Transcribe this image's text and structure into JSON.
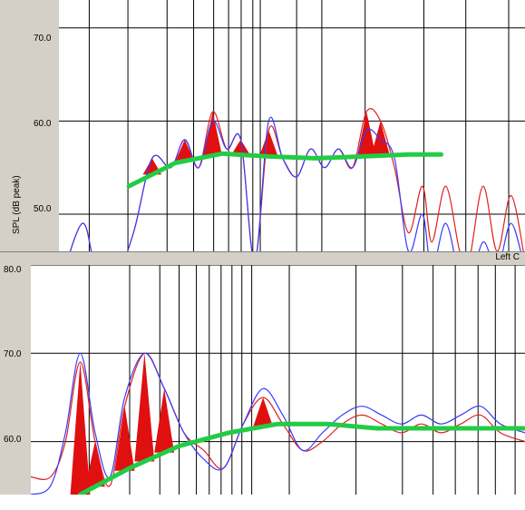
{
  "top_panel": {
    "y_axis_title": "SPL (dB peak)",
    "y_ticks": [
      "70.0",
      "60.0",
      "50.0"
    ]
  },
  "bottom_panel": {
    "header_label": "Left C",
    "y_ticks": [
      "80.0",
      "70.0",
      "60.0"
    ]
  },
  "colors": {
    "background": "#ffffff",
    "gutter": "#d4d0c8",
    "grid": "#000000",
    "measured": "#e02020",
    "target": "#3a3aff",
    "limit": "#22cc44",
    "exceed_fill": "#e01010"
  },
  "chart_data": [
    {
      "type": "line",
      "title": "",
      "ylabel": "SPL (dB peak)",
      "ylim": [
        46,
        73
      ],
      "y_ticks": [
        70,
        60,
        50
      ],
      "grid": true,
      "series": [
        {
          "name": "",
          "color": "red",
          "x": [
            0.0,
            0.05,
            0.08,
            0.12,
            0.16,
            0.2,
            0.24,
            0.27,
            0.3,
            0.33,
            0.36,
            0.39,
            0.42,
            0.45,
            0.48,
            0.51,
            0.54,
            0.57,
            0.6,
            0.63,
            0.66,
            0.69,
            0.72,
            0.75,
            0.78,
            0.8,
            0.83,
            0.86,
            0.88,
            0.91,
            0.94,
            0.97,
            1.0
          ],
          "y": [
            42,
            49,
            44,
            43,
            48,
            56,
            55,
            58,
            55,
            61,
            57,
            58,
            45,
            59,
            56,
            54,
            57,
            55,
            57,
            55,
            61,
            60,
            55,
            48,
            53,
            47,
            53,
            46,
            45,
            53,
            46,
            52,
            45
          ]
        },
        {
          "name": "",
          "color": "blue",
          "x": [
            0.0,
            0.05,
            0.08,
            0.12,
            0.16,
            0.2,
            0.24,
            0.27,
            0.3,
            0.33,
            0.36,
            0.39,
            0.42,
            0.45,
            0.48,
            0.51,
            0.54,
            0.57,
            0.6,
            0.63,
            0.66,
            0.69,
            0.72,
            0.75,
            0.78,
            0.8,
            0.83,
            0.86,
            0.88,
            0.91,
            0.94,
            0.97,
            1.0
          ],
          "y": [
            42,
            49,
            44,
            43,
            48,
            56,
            55,
            58,
            55,
            60,
            57,
            58,
            45,
            60,
            56,
            54,
            57,
            55,
            57,
            55,
            59,
            58,
            56,
            46,
            50,
            44,
            49,
            43,
            42,
            47,
            44,
            49,
            44
          ]
        },
        {
          "name": "",
          "color": "green",
          "x": [
            0.15,
            0.25,
            0.35,
            0.45,
            0.55,
            0.65,
            0.75,
            0.82
          ],
          "y": [
            53,
            55.5,
            56.5,
            56.2,
            56,
            56.2,
            56.4,
            56.4
          ]
        }
      ]
    },
    {
      "type": "line",
      "title": "",
      "ylim": [
        54,
        80
      ],
      "y_ticks": [
        80,
        70,
        60
      ],
      "grid": true,
      "series": [
        {
          "name": "",
          "color": "red",
          "x": [
            0.0,
            0.04,
            0.07,
            0.1,
            0.13,
            0.16,
            0.19,
            0.23,
            0.27,
            0.31,
            0.35,
            0.39,
            0.43,
            0.47,
            0.51,
            0.55,
            0.59,
            0.63,
            0.67,
            0.71,
            0.75,
            0.79,
            0.83,
            0.87,
            0.91,
            0.95,
            1.0
          ],
          "y": [
            56,
            56,
            60,
            69,
            60,
            55,
            64,
            70,
            66,
            61,
            59,
            57,
            62,
            65,
            62,
            59,
            60,
            62,
            63,
            62,
            61,
            62,
            61,
            62,
            63,
            61,
            60
          ]
        },
        {
          "name": "",
          "color": "blue",
          "x": [
            0.0,
            0.04,
            0.07,
            0.1,
            0.13,
            0.16,
            0.19,
            0.23,
            0.27,
            0.31,
            0.35,
            0.39,
            0.43,
            0.47,
            0.51,
            0.55,
            0.59,
            0.63,
            0.67,
            0.71,
            0.75,
            0.79,
            0.83,
            0.87,
            0.91,
            0.95,
            1.0
          ],
          "y": [
            54,
            55,
            61,
            70,
            61,
            56,
            65,
            70,
            66,
            61,
            58,
            57,
            62,
            66,
            63,
            59,
            61,
            63,
            64,
            63,
            62,
            63,
            62,
            63,
            64,
            62,
            61
          ]
        },
        {
          "name": "",
          "color": "green",
          "x": [
            0.1,
            0.2,
            0.3,
            0.4,
            0.5,
            0.6,
            0.7,
            0.8,
            0.9,
            1.0
          ],
          "y": [
            54,
            57,
            59.5,
            61,
            62,
            62,
            61.5,
            61.5,
            61.5,
            61.5
          ]
        }
      ]
    }
  ]
}
